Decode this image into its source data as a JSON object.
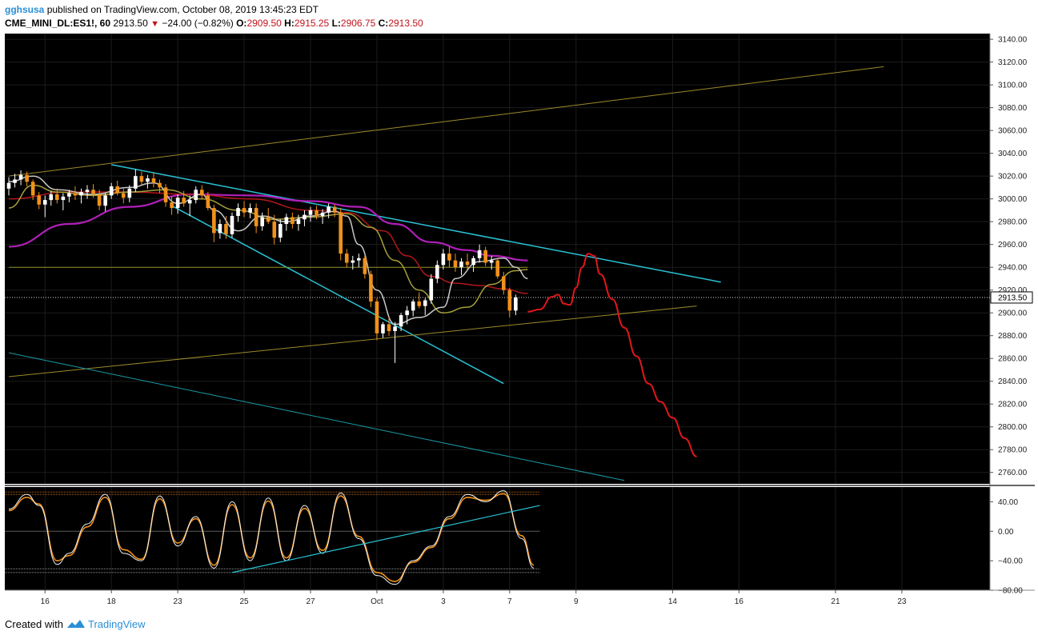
{
  "header": {
    "username": "gghsusa",
    "published_text": "published on TradingView.com, October 08, 2019 13:45:23 EDT",
    "symbol": "CME_MINI_DL:ES1!, 60",
    "last": "2913.50",
    "change": "−24.00 (−0.82%)",
    "open_label": "O:",
    "open": "2909.50",
    "high_label": "H:",
    "high": "2915.25",
    "low_label": "L:",
    "low": "2906.75",
    "close_label": "C:",
    "close": "2913.50"
  },
  "footer": {
    "created_with": "Created with",
    "brand": "TradingView"
  },
  "colors": {
    "background": "#000000",
    "bull_candle": "#ffffff",
    "bear_candle": "#f0921a",
    "trendline_cyan": "#29c3d6",
    "channel_olive": "#9a8a2a",
    "ma_magenta": "#b01fb8",
    "ma_red": "#b3161a",
    "ma_gray": "#c8c8c8",
    "ma_olive": "#a7a03a",
    "projection_red": "#e0171c",
    "level_line": "#8f8d23"
  },
  "chart_data": {
    "type": "candlestick",
    "time_axis_ticks": [
      {
        "label": "16",
        "slot": 6
      },
      {
        "label": "18",
        "slot": 17
      },
      {
        "label": "23",
        "slot": 28
      },
      {
        "label": "25",
        "slot": 39
      },
      {
        "label": "27",
        "slot": 50
      },
      {
        "label": "Oct",
        "slot": 61
      },
      {
        "label": "3",
        "slot": 72
      },
      {
        "label": "7",
        "slot": 83
      },
      {
        "label": "9",
        "slot": 94
      },
      {
        "label": "14",
        "slot": 110
      },
      {
        "label": "16",
        "slot": 121
      },
      {
        "label": "21",
        "slot": 137
      },
      {
        "label": "23",
        "slot": 148
      }
    ],
    "price_axis": {
      "ylim": [
        2750,
        3145
      ],
      "ticks": [
        "3140.00",
        "3120.00",
        "3100.00",
        "3080.00",
        "3060.00",
        "3040.00",
        "3020.00",
        "3000.00",
        "2980.00",
        "2960.00",
        "2940.00",
        "2920.00",
        "2900.00",
        "2880.00",
        "2860.00",
        "2840.00",
        "2820.00",
        "2800.00",
        "2780.00",
        "2760.00"
      ],
      "last_price_label": "2913.50",
      "last_price": 2913.5
    },
    "candles": [
      [
        3009,
        3019,
        3003,
        3014
      ],
      [
        3014,
        3022,
        3010,
        3017
      ],
      [
        3017,
        3025,
        3012,
        3021
      ],
      [
        3021,
        3024,
        3011,
        3015
      ],
      [
        3015,
        3017,
        2999,
        3003
      ],
      [
        3003,
        3006,
        2991,
        2995
      ],
      [
        2995,
        3003,
        2984,
        2999
      ],
      [
        2999,
        3007,
        2994,
        3004
      ],
      [
        3004,
        3009,
        2996,
        2999
      ],
      [
        2999,
        3005,
        2990,
        3002
      ],
      [
        3002,
        3008,
        2997,
        3005
      ],
      [
        3005,
        3011,
        2999,
        3003
      ],
      [
        3003,
        3009,
        2996,
        3006
      ],
      [
        3006,
        3012,
        3000,
        3008
      ],
      [
        3008,
        3013,
        3001,
        3004
      ],
      [
        3004,
        3008,
        2990,
        2994
      ],
      [
        2994,
        3005,
        2989,
        3003
      ],
      [
        3003,
        3014,
        3000,
        3011
      ],
      [
        3011,
        3016,
        3003,
        3005
      ],
      [
        3005,
        3009,
        2996,
        3001
      ],
      [
        3001,
        3012,
        2997,
        3009
      ],
      [
        3009,
        3026,
        3006,
        3020
      ],
      [
        3020,
        3024,
        3012,
        3015
      ],
      [
        3015,
        3021,
        3009,
        3018
      ],
      [
        3018,
        3023,
        3010,
        3014
      ],
      [
        3014,
        3017,
        3005,
        3010
      ],
      [
        3010,
        3013,
        2993,
        2997
      ],
      [
        2997,
        3002,
        2986,
        2992
      ],
      [
        2992,
        3004,
        2987,
        3001
      ],
      [
        3001,
        3007,
        2993,
        2996
      ],
      [
        2996,
        3003,
        2985,
        2999
      ],
      [
        2999,
        3011,
        2996,
        3008
      ],
      [
        3008,
        3012,
        3000,
        3003
      ],
      [
        3003,
        3006,
        2990,
        2992
      ],
      [
        2992,
        2995,
        2962,
        2970
      ],
      [
        2970,
        2982,
        2965,
        2978
      ],
      [
        2978,
        2985,
        2965,
        2969
      ],
      [
        2969,
        2988,
        2966,
        2985
      ],
      [
        2985,
        2996,
        2980,
        2992
      ],
      [
        2992,
        2998,
        2984,
        2988
      ],
      [
        2988,
        2996,
        2983,
        2992
      ],
      [
        2992,
        2996,
        2970,
        2976
      ],
      [
        2976,
        2988,
        2972,
        2984
      ],
      [
        2984,
        2992,
        2978,
        2980
      ],
      [
        2980,
        2986,
        2960,
        2966
      ],
      [
        2966,
        2982,
        2962,
        2978
      ],
      [
        2978,
        2987,
        2972,
        2984
      ],
      [
        2984,
        2988,
        2974,
        2978
      ],
      [
        2978,
        2986,
        2972,
        2982
      ],
      [
        2982,
        2990,
        2976,
        2986
      ],
      [
        2986,
        2993,
        2980,
        2990
      ],
      [
        2990,
        2994,
        2982,
        2985
      ],
      [
        2985,
        2991,
        2978,
        2988
      ],
      [
        2988,
        2996,
        2983,
        2993
      ],
      [
        2993,
        2995,
        2984,
        2988
      ],
      [
        2988,
        2992,
        2946,
        2952
      ],
      [
        2952,
        2956,
        2940,
        2944
      ],
      [
        2944,
        2950,
        2938,
        2946
      ],
      [
        2946,
        2952,
        2940,
        2948
      ],
      [
        2948,
        2950,
        2930,
        2934
      ],
      [
        2934,
        2937,
        2905,
        2910
      ],
      [
        2910,
        2913,
        2876,
        2882
      ],
      [
        2882,
        2892,
        2878,
        2890
      ],
      [
        2890,
        2896,
        2880,
        2884
      ],
      [
        2884,
        2892,
        2856,
        2888
      ],
      [
        2888,
        2900,
        2884,
        2898
      ],
      [
        2898,
        2906,
        2890,
        2902
      ],
      [
        2902,
        2912,
        2897,
        2910
      ],
      [
        2910,
        2918,
        2904,
        2906
      ],
      [
        2906,
        2913,
        2898,
        2911
      ],
      [
        2911,
        2934,
        2908,
        2930
      ],
      [
        2930,
        2946,
        2926,
        2942
      ],
      [
        2942,
        2956,
        2938,
        2952
      ],
      [
        2952,
        2958,
        2940,
        2946
      ],
      [
        2946,
        2952,
        2936,
        2940
      ],
      [
        2940,
        2948,
        2933,
        2945
      ],
      [
        2945,
        2952,
        2938,
        2942
      ],
      [
        2942,
        2950,
        2936,
        2948
      ],
      [
        2948,
        2960,
        2944,
        2955
      ],
      [
        2955,
        2958,
        2941,
        2944
      ],
      [
        2944,
        2950,
        2938,
        2946
      ],
      [
        2946,
        2948,
        2930,
        2932
      ],
      [
        2932,
        2936,
        2916,
        2920
      ],
      [
        2920,
        2922,
        2896,
        2902
      ],
      [
        2902,
        2916,
        2898,
        2913.5
      ]
    ],
    "moving_averages": [
      {
        "color": "#b01fb8",
        "points": [
          [
            0,
            2958
          ],
          [
            10,
            2978
          ],
          [
            20,
            2993
          ],
          [
            30,
            3004
          ],
          [
            40,
            3003
          ],
          [
            50,
            2998
          ],
          [
            58,
            2993
          ],
          [
            64,
            2978
          ],
          [
            70,
            2962
          ],
          [
            76,
            2955
          ],
          [
            80,
            2950
          ],
          [
            86,
            2946
          ]
        ]
      },
      {
        "color": "#b3161a",
        "points": [
          [
            0,
            3000
          ],
          [
            10,
            3006
          ],
          [
            20,
            3006
          ],
          [
            30,
            3004
          ],
          [
            40,
            3000
          ],
          [
            50,
            2990
          ],
          [
            56,
            2988
          ],
          [
            62,
            2972
          ],
          [
            66,
            2950
          ],
          [
            70,
            2932
          ],
          [
            74,
            2926
          ],
          [
            78,
            2924
          ],
          [
            82,
            2921
          ],
          [
            86,
            2917
          ]
        ]
      },
      {
        "color": "#a7a03a",
        "points": [
          [
            0,
            2992
          ],
          [
            4,
            3012
          ],
          [
            8,
            3006
          ],
          [
            14,
            3003
          ],
          [
            20,
            3006
          ],
          [
            26,
            3008
          ],
          [
            32,
            3000
          ],
          [
            38,
            2990
          ],
          [
            44,
            2982
          ],
          [
            50,
            2984
          ],
          [
            56,
            2987
          ],
          [
            60,
            2975
          ],
          [
            64,
            2946
          ],
          [
            68,
            2920
          ],
          [
            72,
            2900
          ],
          [
            76,
            2905
          ],
          [
            80,
            2925
          ],
          [
            84,
            2937
          ],
          [
            86,
            2938
          ]
        ]
      },
      {
        "color": "#c8c8c8",
        "points": [
          [
            0,
            3015
          ],
          [
            4,
            3020
          ],
          [
            8,
            3008
          ],
          [
            14,
            3004
          ],
          [
            20,
            3010
          ],
          [
            24,
            3014
          ],
          [
            28,
            2996
          ],
          [
            32,
            3004
          ],
          [
            34,
            2990
          ],
          [
            38,
            2972
          ],
          [
            42,
            2985
          ],
          [
            46,
            2980
          ],
          [
            50,
            2985
          ],
          [
            54,
            2989
          ],
          [
            56,
            2985
          ],
          [
            58,
            2960
          ],
          [
            61,
            2920
          ],
          [
            64,
            2890
          ],
          [
            68,
            2896
          ],
          [
            72,
            2905
          ],
          [
            74,
            2930
          ],
          [
            78,
            2945
          ],
          [
            82,
            2948
          ],
          [
            84,
            2940
          ],
          [
            86,
            2930
          ]
        ]
      }
    ],
    "trendlines": [
      {
        "color": "#29c3d6",
        "width": 1.5,
        "points": [
          [
            17,
            3030
          ],
          [
            118,
            2927
          ]
        ]
      },
      {
        "color": "#29c3d6",
        "width": 1.5,
        "points": [
          [
            27,
            2994
          ],
          [
            82,
            2838
          ]
        ]
      },
      {
        "color": "#9a8a2a",
        "width": 1,
        "points": [
          [
            0,
            3020
          ],
          [
            145,
            3116
          ]
        ]
      },
      {
        "color": "#9a8a2a",
        "width": 1,
        "points": [
          [
            0,
            2844
          ],
          [
            114,
            2906
          ]
        ]
      },
      {
        "color": "#1a9aa6",
        "width": 1,
        "points": [
          [
            0,
            2865
          ],
          [
            102,
            2753
          ]
        ]
      },
      {
        "color": "#8f8d23",
        "width": 1,
        "points": [
          [
            0,
            2940
          ],
          [
            86,
            2940
          ]
        ]
      }
    ],
    "projection": {
      "color": "#e0171c",
      "points": [
        [
          86,
          2901
        ],
        [
          88,
          2903
        ],
        [
          90,
          2914
        ],
        [
          91,
          2916
        ],
        [
          92,
          2908
        ],
        [
          93,
          2907
        ],
        [
          94,
          2922
        ],
        [
          95,
          2940
        ],
        [
          96,
          2952
        ],
        [
          97,
          2950
        ],
        [
          98,
          2934
        ],
        [
          100,
          2912
        ],
        [
          102,
          2887
        ],
        [
          104,
          2862
        ],
        [
          106,
          2838
        ],
        [
          108,
          2822
        ],
        [
          110,
          2808
        ],
        [
          112,
          2790
        ],
        [
          114,
          2774
        ]
      ]
    },
    "oscillator": {
      "ylim": [
        -80,
        60
      ],
      "ticks": [
        "40.00",
        "0.00",
        "−40.00",
        "−80.00"
      ],
      "levels": [
        50,
        0,
        -51,
        -56
      ]
    },
    "oscillator_values": [
      [
        0,
        30
      ],
      [
        3,
        50
      ],
      [
        5,
        35
      ],
      [
        8,
        -45
      ],
      [
        10,
        -30
      ],
      [
        13,
        10
      ],
      [
        16,
        50
      ],
      [
        19,
        -30
      ],
      [
        22,
        -40
      ],
      [
        25,
        48
      ],
      [
        28,
        -20
      ],
      [
        31,
        20
      ],
      [
        34,
        -50
      ],
      [
        37,
        40
      ],
      [
        40,
        -40
      ],
      [
        43,
        45
      ],
      [
        46,
        -40
      ],
      [
        49,
        35
      ],
      [
        52,
        -30
      ],
      [
        55,
        52
      ],
      [
        58,
        -10
      ],
      [
        61,
        -60
      ],
      [
        64,
        -72
      ],
      [
        67,
        -40
      ],
      [
        70,
        -20
      ],
      [
        73,
        20
      ],
      [
        76,
        50
      ],
      [
        79,
        40
      ],
      [
        82,
        55
      ],
      [
        85,
        -10
      ],
      [
        87,
        -50
      ]
    ],
    "oscillator_signal": [
      [
        0,
        28
      ],
      [
        3,
        46
      ],
      [
        5,
        37
      ],
      [
        8,
        -40
      ],
      [
        10,
        -33
      ],
      [
        13,
        6
      ],
      [
        16,
        46
      ],
      [
        19,
        -25
      ],
      [
        22,
        -38
      ],
      [
        25,
        44
      ],
      [
        28,
        -16
      ],
      [
        31,
        17
      ],
      [
        34,
        -46
      ],
      [
        37,
        36
      ],
      [
        40,
        -36
      ],
      [
        43,
        41
      ],
      [
        46,
        -36
      ],
      [
        49,
        31
      ],
      [
        52,
        -26
      ],
      [
        55,
        48
      ],
      [
        58,
        -7
      ],
      [
        61,
        -56
      ],
      [
        64,
        -68
      ],
      [
        67,
        -42
      ],
      [
        70,
        -22
      ],
      [
        73,
        17
      ],
      [
        76,
        46
      ],
      [
        79,
        42
      ],
      [
        82,
        51
      ],
      [
        85,
        -6
      ],
      [
        87,
        -46
      ]
    ],
    "oscillator_trendlines": [
      {
        "color": "#29c3d6",
        "points": [
          [
            37,
            -56
          ],
          [
            88,
            35
          ]
        ]
      }
    ]
  }
}
